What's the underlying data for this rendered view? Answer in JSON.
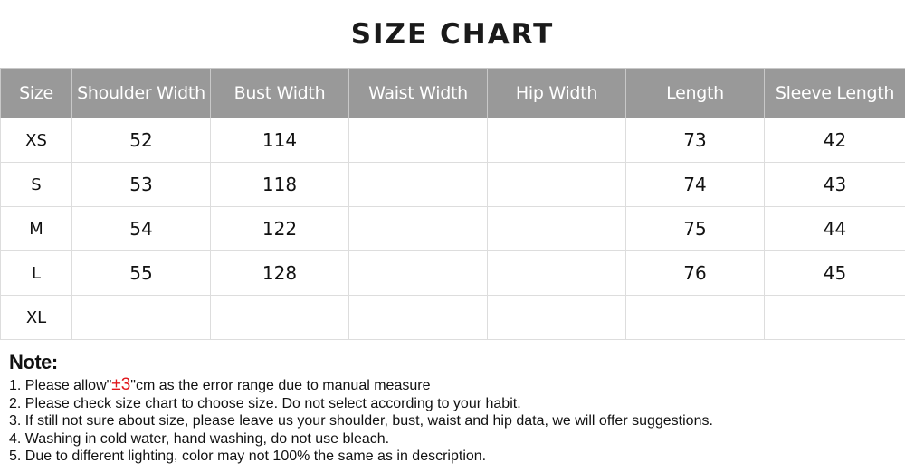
{
  "title": "SIZE CHART",
  "table": {
    "headers": [
      "Size",
      "Shoulder Width",
      "Bust Width",
      "Waist Width",
      "Hip Width",
      "Length",
      "Sleeve Length"
    ],
    "rows": [
      [
        "XS",
        "52",
        "114",
        "",
        "",
        "73",
        "42"
      ],
      [
        "S",
        "53",
        "118",
        "",
        "",
        "74",
        "43"
      ],
      [
        "M",
        "54",
        "122",
        "",
        "",
        "75",
        "44"
      ],
      [
        "L",
        "55",
        "128",
        "",
        "",
        "76",
        "45"
      ],
      [
        "XL",
        "",
        "",
        "",
        "",
        "",
        ""
      ]
    ]
  },
  "notes": {
    "heading": "Note:",
    "line1_prefix": "1. Please allow\"",
    "line1_highlight": "±3",
    "line1_suffix": "\"cm as the error range due to manual measure",
    "lines": [
      "2. Please check size chart to choose size. Do not select according to your habit.",
      "3. If still not sure about size, please leave us your shoulder, bust, waist and hip data, we will offer suggestions.",
      "4. Washing in cold water, hand washing, do not use bleach.",
      "5. Due to different lighting, color may not 100% the same as in description."
    ]
  },
  "colors": {
    "header_bg": "#999999",
    "highlight": "#e0161b"
  }
}
